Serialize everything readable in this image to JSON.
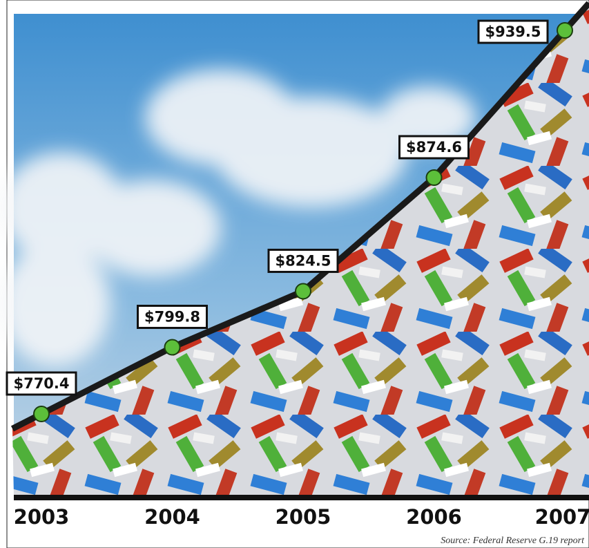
{
  "chart_data": {
    "type": "line",
    "categories": [
      "2003",
      "2004",
      "2005",
      "2006",
      "2007"
    ],
    "values": [
      770.4,
      799.8,
      824.5,
      874.6,
      939.5
    ],
    "value_labels": [
      "$770.4",
      "$799.8",
      "$824.5",
      "$874.6",
      "$939.5"
    ],
    "color": "#1a1a1a",
    "marker_color": "#5cbf3a",
    "source": "Source: Federal Reserve G.19 report"
  }
}
